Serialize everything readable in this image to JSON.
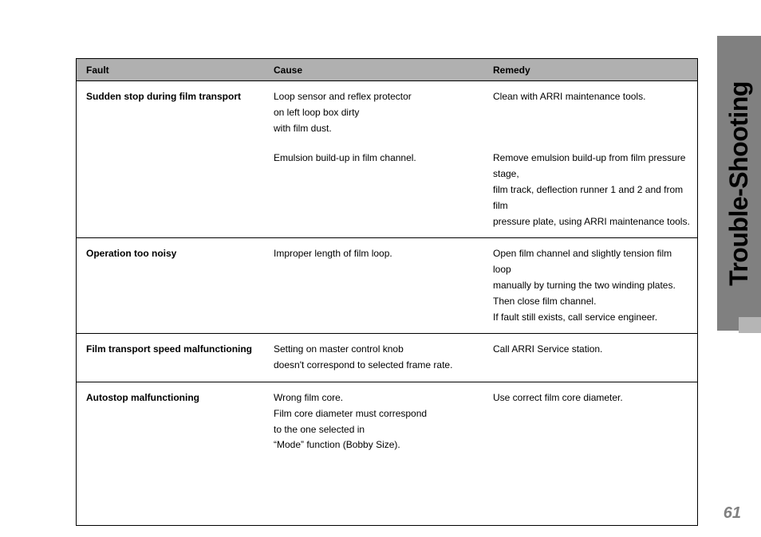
{
  "sideTab": "Trouble-Shooting",
  "pageNumber": "61",
  "colors": {
    "sideTabBg": "#808080",
    "sideTabText": "#000000",
    "smallTabBg": "#b5b5b5",
    "pageNumColor": "#808080",
    "headerBg": "#b0b0b0",
    "border": "#000000",
    "text": "#000000",
    "pageBg": "#ffffff"
  },
  "typography": {
    "sideTabFontSize": 32,
    "sideTabWeight": 900,
    "pageNumFontSize": 20,
    "headerFontSize": 12,
    "bodyFontSize": 12,
    "bodyLineHeight": 1.65
  },
  "layout": {
    "pageWidth": 954,
    "pageHeight": 674,
    "tableLeft": 95,
    "tableTop": 73,
    "tableWidth": 780,
    "colWidths": {
      "fault": 235,
      "cause": 275,
      "remedy": 270
    }
  },
  "table": {
    "headers": {
      "fault": "Fault",
      "cause": "Cause",
      "remedy": "Remedy"
    },
    "rows": [
      {
        "fault": "Sudden stop during film transport",
        "entries": [
          {
            "cause": "Loop sensor and reflex protector\non left loop box dirty\nwith film dust.",
            "remedy": "Clean with ARRI maintenance tools."
          },
          {
            "cause": "Emulsion build-up in film channel.",
            "remedy": "Remove emulsion build-up from film pressure stage,\nfilm track, deflection runner 1 and 2 and from film\npressure plate, using ARRI maintenance tools."
          }
        ]
      },
      {
        "fault": "Operation too noisy",
        "entries": [
          {
            "cause": "Improper length of film loop.",
            "remedy": "Open film channel and slightly tension film loop\nmanually by turning the two winding plates.\nThen close film channel.\nIf fault still exists, call service engineer."
          }
        ]
      },
      {
        "fault": "Film transport speed malfunctioning",
        "entries": [
          {
            "cause": "Setting on master control knob\ndoesn't correspond to selected frame rate.",
            "remedy": "Call ARRI Service station."
          }
        ]
      },
      {
        "fault": "Autostop malfunctioning",
        "entries": [
          {
            "cause": "Wrong film core.\nFilm core diameter must correspond\nto the one selected in\n“Mode” function (Bobby Size).",
            "remedy": "Use correct film core diameter."
          }
        ]
      }
    ]
  }
}
